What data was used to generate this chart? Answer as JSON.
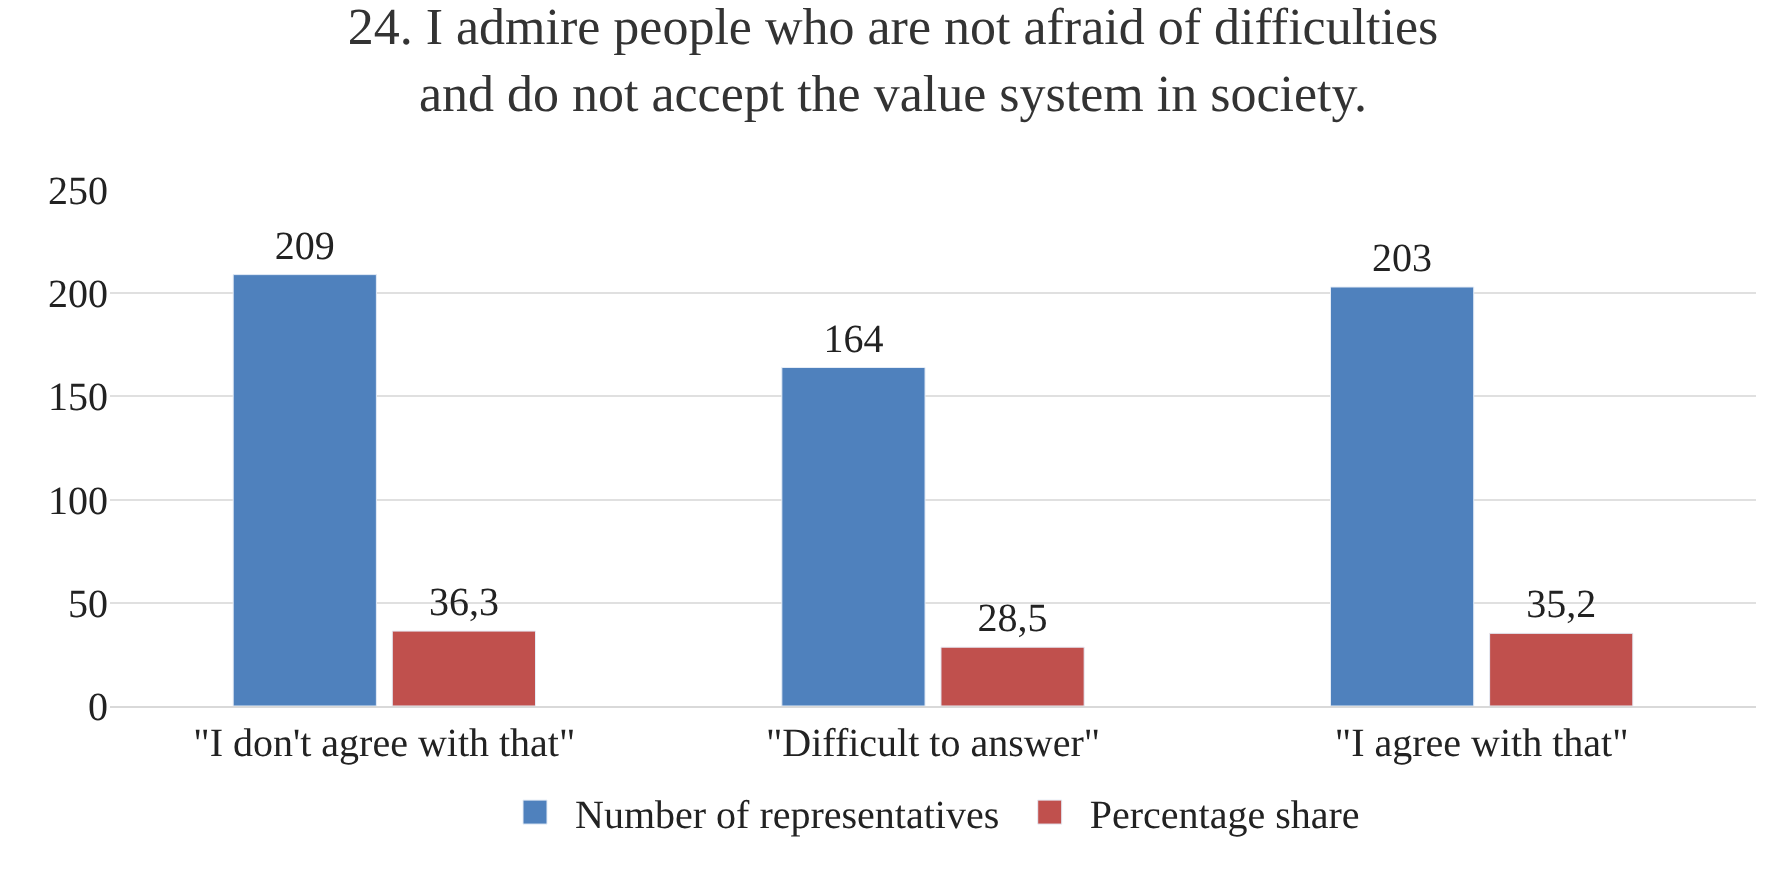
{
  "chart_data": {
    "type": "bar",
    "title": "24. I admire people who are not afraid of difficulties\nand do not accept the value system in society.",
    "categories": [
      "\"I don't agree with that\"",
      "\"Difficult to answer\"",
      "\"I agree with that\""
    ],
    "series": [
      {
        "name": "Number of representatives",
        "color": "#4f81bd",
        "values": [
          209,
          164,
          203
        ],
        "value_labels": [
          "209",
          "164",
          "203"
        ]
      },
      {
        "name": "Percentage share",
        "color": "#c0504d",
        "values": [
          36.3,
          28.5,
          35.2
        ],
        "value_labels": [
          "36,3",
          "28,5",
          "35,2"
        ]
      }
    ],
    "ylim": [
      0,
      250
    ],
    "yticks": [
      0,
      50,
      100,
      150,
      200,
      250
    ],
    "grid": "y",
    "legend": "bottom"
  }
}
